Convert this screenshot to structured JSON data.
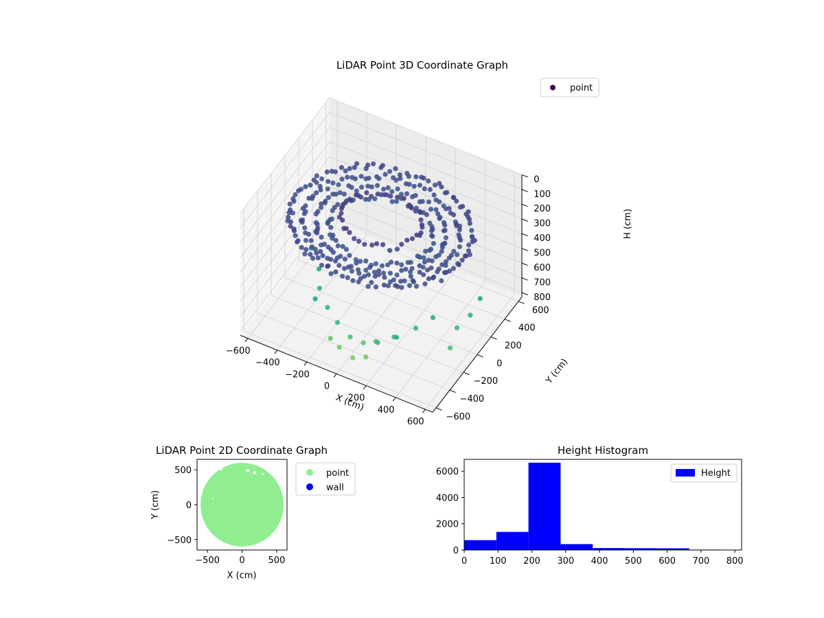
{
  "chart_data": [
    {
      "type": "scatter3d",
      "title": "LiDAR Point 3D Coordinate Graph",
      "xlabel": "X (cm)",
      "ylabel": "Y (cm)",
      "zlabel": "H (cm)",
      "xlim": [
        -650,
        650
      ],
      "ylim": [
        -650,
        650
      ],
      "zlim": [
        0,
        830
      ],
      "z_inverted": true,
      "xticks": [
        -600,
        -400,
        -200,
        0,
        200,
        400,
        600
      ],
      "yticks": [
        -600,
        -400,
        -200,
        0,
        200,
        400,
        600
      ],
      "zticks": [
        0,
        100,
        200,
        300,
        400,
        500,
        600,
        700,
        800
      ],
      "colormap": "viridis",
      "color_by": "height",
      "legend": {
        "entries": [
          "point"
        ],
        "placement": "top-right"
      },
      "grid": true,
      "series": [
        {
          "name": "point",
          "rings": [
            {
              "height": 220,
              "radius": 560,
              "points": 110
            },
            {
              "height": 230,
              "radius": 480,
              "points": 95
            },
            {
              "height": 240,
              "radius": 400,
              "points": 80
            },
            {
              "height": 250,
              "radius": 320,
              "points": 60
            },
            {
              "height": 180,
              "radius": 250,
              "points": 40
            }
          ],
          "lower_points": [
            {
              "x": -350,
              "y": -150,
              "h": 560
            },
            {
              "x": -300,
              "y": -250,
              "h": 610
            },
            {
              "x": -200,
              "y": -350,
              "h": 640
            },
            {
              "x": -100,
              "y": -420,
              "h": 660
            },
            {
              "x": 0,
              "y": -450,
              "h": 700
            },
            {
              "x": 80,
              "y": -430,
              "h": 720
            },
            {
              "x": 150,
              "y": -400,
              "h": 700
            },
            {
              "x": 250,
              "y": -350,
              "h": 660
            },
            {
              "x": 350,
              "y": -250,
              "h": 620
            },
            {
              "x": 420,
              "y": -150,
              "h": 580
            },
            {
              "x": -50,
              "y": -500,
              "h": 760
            },
            {
              "x": 50,
              "y": -520,
              "h": 780
            },
            {
              "x": 120,
              "y": -480,
              "h": 770
            },
            {
              "x": -120,
              "y": -480,
              "h": 740
            },
            {
              "x": 550,
              "y": -80,
              "h": 640
            },
            {
              "x": 580,
              "y": 50,
              "h": 620
            },
            {
              "x": 560,
              "y": -200,
              "h": 700
            },
            {
              "x": 600,
              "y": 150,
              "h": 560
            },
            {
              "x": -450,
              "y": -50,
              "h": 520
            },
            {
              "x": 300,
              "y": -420,
              "h": 600
            },
            {
              "x": -250,
              "y": -420,
              "h": 560
            },
            {
              "x": 200,
              "y": -480,
              "h": 640
            }
          ]
        }
      ]
    },
    {
      "type": "scatter",
      "title": "LiDAR Point 2D Coordinate Graph",
      "xlabel": "X (cm)",
      "ylabel": "Y (cm)",
      "xlim": [
        -650,
        650
      ],
      "ylim": [
        -650,
        650
      ],
      "xticks": [
        -500,
        0,
        500
      ],
      "yticks": [
        -500,
        0,
        500
      ],
      "series": [
        {
          "name": "point",
          "color": "#90ee90",
          "shape": "disk",
          "radius": 600
        },
        {
          "name": "wall",
          "color": "#0000ff",
          "points": []
        }
      ],
      "legend": {
        "entries": [
          "point",
          "wall"
        ],
        "placement": "outside-right"
      }
    },
    {
      "type": "histogram",
      "title": "Height Histogram",
      "xlim": [
        0,
        820
      ],
      "ylim": [
        0,
        6900
      ],
      "xticks": [
        0,
        100,
        200,
        300,
        400,
        500,
        600,
        700,
        800
      ],
      "yticks": [
        0,
        2000,
        4000,
        6000
      ],
      "series": [
        {
          "name": "Height",
          "color": "#0000ff",
          "bins": [
            {
              "x0": 0,
              "x1": 95,
              "count": 750
            },
            {
              "x0": 95,
              "x1": 190,
              "count": 1380
            },
            {
              "x0": 190,
              "x1": 285,
              "count": 6650
            },
            {
              "x0": 285,
              "x1": 380,
              "count": 450
            },
            {
              "x0": 380,
              "x1": 475,
              "count": 150
            },
            {
              "x0": 475,
              "x1": 570,
              "count": 140
            },
            {
              "x0": 570,
              "x1": 665,
              "count": 130
            },
            {
              "x0": 665,
              "x1": 760,
              "count": 30
            }
          ]
        }
      ],
      "legend": {
        "entries": [
          "Height"
        ],
        "placement": "top-right"
      }
    }
  ]
}
